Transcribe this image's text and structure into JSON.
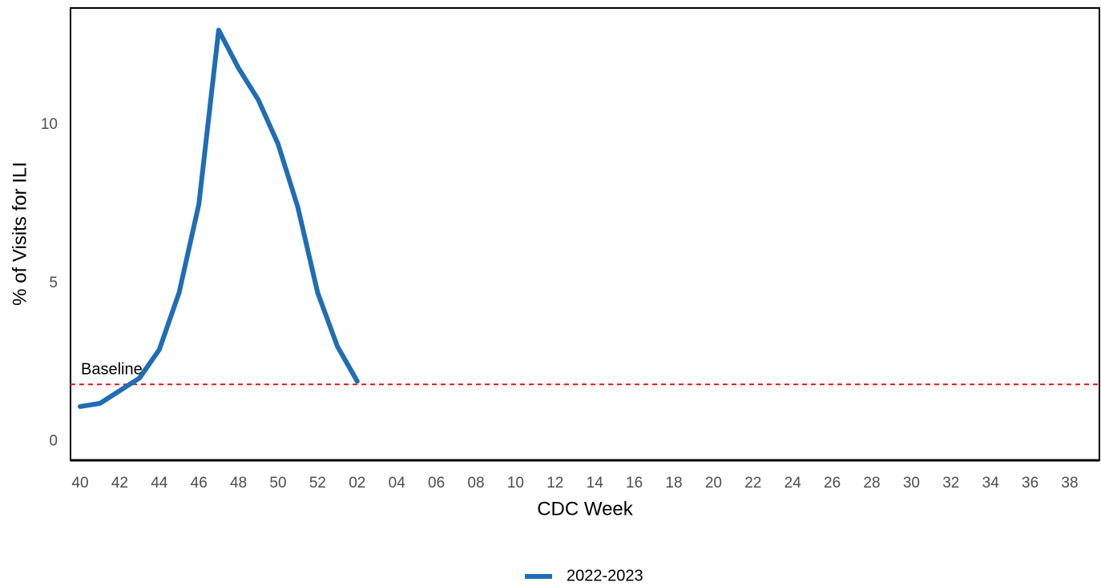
{
  "chart_data": {
    "type": "line",
    "x_label": "CDC Week",
    "y_label": "% of Visits for ILI",
    "categories": [
      "40",
      null,
      "42",
      null,
      "44",
      null,
      "46",
      null,
      "48",
      null,
      "50",
      null,
      "52",
      null,
      "02",
      null,
      "04",
      null,
      "06",
      null,
      "08",
      null,
      "10",
      null,
      "12",
      null,
      "14",
      null,
      "16",
      null,
      "18",
      null,
      "20",
      null,
      "22",
      null,
      "24",
      null,
      "26",
      null,
      "28",
      null,
      "30",
      null,
      "32",
      null,
      "34",
      null,
      "36",
      null,
      "38",
      null
    ],
    "series": [
      {
        "name": "2022-2023",
        "color": "#1f6db5",
        "values": [
          1.1,
          1.2,
          1.6,
          2.0,
          2.9,
          4.7,
          7.5,
          13.0,
          11.8,
          10.8,
          9.4,
          7.4,
          4.7,
          3.0,
          1.9,
          null,
          null,
          null,
          null,
          null,
          null,
          null,
          null,
          null,
          null,
          null,
          null,
          null,
          null,
          null,
          null,
          null,
          null,
          null,
          null,
          null,
          null,
          null,
          null,
          null,
          null,
          null,
          null,
          null,
          null,
          null,
          null,
          null,
          null,
          null,
          null,
          null
        ]
      }
    ],
    "ylim": [
      -0.6,
      13.7
    ],
    "yticks": [
      0,
      5,
      10
    ],
    "grid": false,
    "baseline": {
      "value": 1.8,
      "label": "Baseline",
      "color": "#e41a1c"
    },
    "legend": "bottom"
  }
}
